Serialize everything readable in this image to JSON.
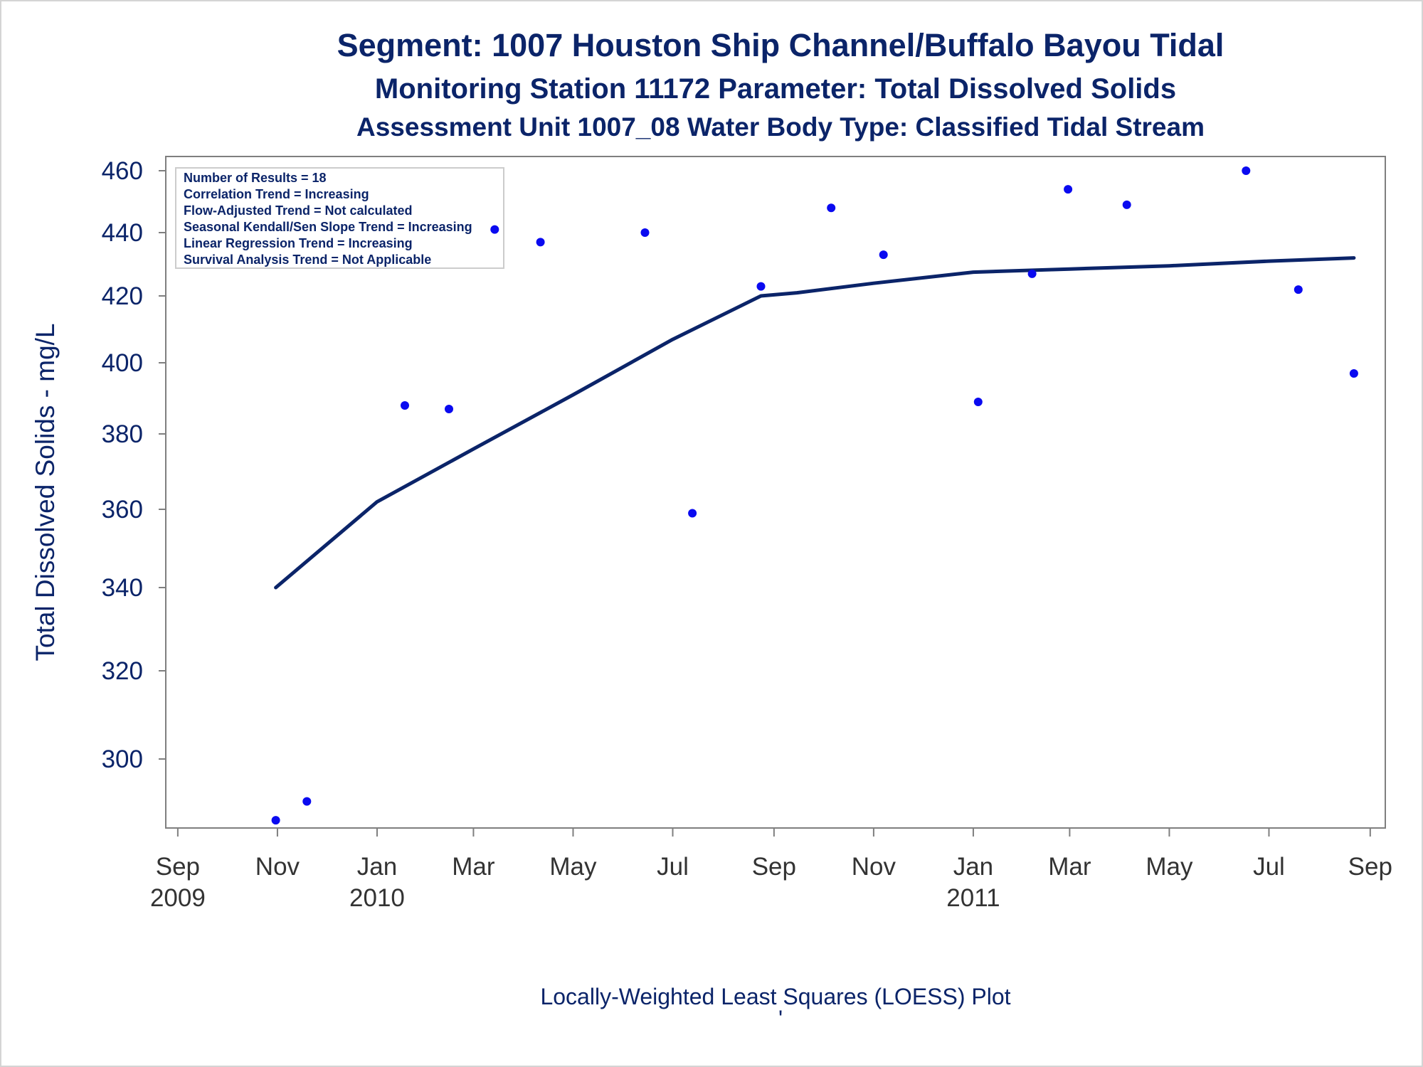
{
  "chart_data": {
    "type": "scatter",
    "title": "Segment: 1007  Houston Ship Channel/Buffalo Bayou Tidal",
    "subtitle1": "Monitoring Station 11172 Parameter: Total Dissolved Solids",
    "subtitle2": "Assessment Unit 1007_08   Water Body Type: Classified Tidal Stream",
    "ylabel": "Total Dissolved Solids - mg/L",
    "xlabel": "Locally-Weighted Least Squares (LOESS) Plot",
    "footnote": "'",
    "ylim": [
      284,
      464
    ],
    "xlim": [
      "2009-08-29",
      "2011-09-05"
    ],
    "y_ticks": [
      300,
      320,
      340,
      360,
      380,
      400,
      420,
      440,
      460
    ],
    "x_ticks": [
      {
        "date": "2009-09-01",
        "month": "Sep",
        "year": "2009"
      },
      {
        "date": "2009-11-01",
        "month": "Nov",
        "year": ""
      },
      {
        "date": "2010-01-01",
        "month": "Jan",
        "year": "2010"
      },
      {
        "date": "2010-03-01",
        "month": "Mar",
        "year": ""
      },
      {
        "date": "2010-05-01",
        "month": "May",
        "year": ""
      },
      {
        "date": "2010-07-01",
        "month": "Jul",
        "year": ""
      },
      {
        "date": "2010-09-01",
        "month": "Sep",
        "year": ""
      },
      {
        "date": "2010-11-01",
        "month": "Nov",
        "year": ""
      },
      {
        "date": "2011-01-01",
        "month": "Jan",
        "year": "2011"
      },
      {
        "date": "2011-03-01",
        "month": "Mar",
        "year": ""
      },
      {
        "date": "2011-05-01",
        "month": "May",
        "year": ""
      },
      {
        "date": "2011-07-01",
        "month": "Jul",
        "year": ""
      },
      {
        "date": "2011-09-01",
        "month": "Sep",
        "year": ""
      }
    ],
    "stats": [
      "Number of Results = 18",
      "Correlation Trend = Increasing",
      "Flow-Adjusted Trend = Not calculated",
      "Seasonal Kendall/Sen Slope Trend = Increasing",
      "Linear Regression Trend = Increasing",
      "Survival Analysis Trend = Not Applicable"
    ],
    "stats_placement": "top-left",
    "points": [
      {
        "x": "2009-10-31",
        "y": 287
      },
      {
        "x": "2009-11-19",
        "y": 291
      },
      {
        "x": "2010-01-18",
        "y": 388
      },
      {
        "x": "2010-02-14",
        "y": 387
      },
      {
        "x": "2010-03-14",
        "y": 441
      },
      {
        "x": "2010-04-11",
        "y": 437
      },
      {
        "x": "2010-06-14",
        "y": 440
      },
      {
        "x": "2010-07-13",
        "y": 359
      },
      {
        "x": "2010-08-24",
        "y": 423
      },
      {
        "x": "2010-10-06",
        "y": 448
      },
      {
        "x": "2010-11-07",
        "y": 433
      },
      {
        "x": "2011-01-04",
        "y": 389
      },
      {
        "x": "2011-02-06",
        "y": 427
      },
      {
        "x": "2011-02-28",
        "y": 454
      },
      {
        "x": "2011-04-05",
        "y": 449
      },
      {
        "x": "2011-06-17",
        "y": 460
      },
      {
        "x": "2011-07-19",
        "y": 422
      },
      {
        "x": "2011-08-22",
        "y": 397
      }
    ],
    "loess": [
      {
        "x": "2009-10-31",
        "y": 340
      },
      {
        "x": "2010-01-01",
        "y": 362
      },
      {
        "x": "2010-03-01",
        "y": 376
      },
      {
        "x": "2010-05-01",
        "y": 391
      },
      {
        "x": "2010-07-01",
        "y": 407
      },
      {
        "x": "2010-08-24",
        "y": 420
      },
      {
        "x": "2010-09-15",
        "y": 421
      },
      {
        "x": "2010-11-01",
        "y": 424
      },
      {
        "x": "2011-01-01",
        "y": 427.5
      },
      {
        "x": "2011-03-01",
        "y": 428.5
      },
      {
        "x": "2011-05-01",
        "y": 429.5
      },
      {
        "x": "2011-07-01",
        "y": 431
      },
      {
        "x": "2011-08-22",
        "y": 432
      }
    ],
    "grid": false,
    "colors": {
      "text": "#0b2469",
      "line": "#0b2469",
      "points": "#0a0af0",
      "axis": "#7f7f7f",
      "tick_text": "#333333"
    }
  }
}
